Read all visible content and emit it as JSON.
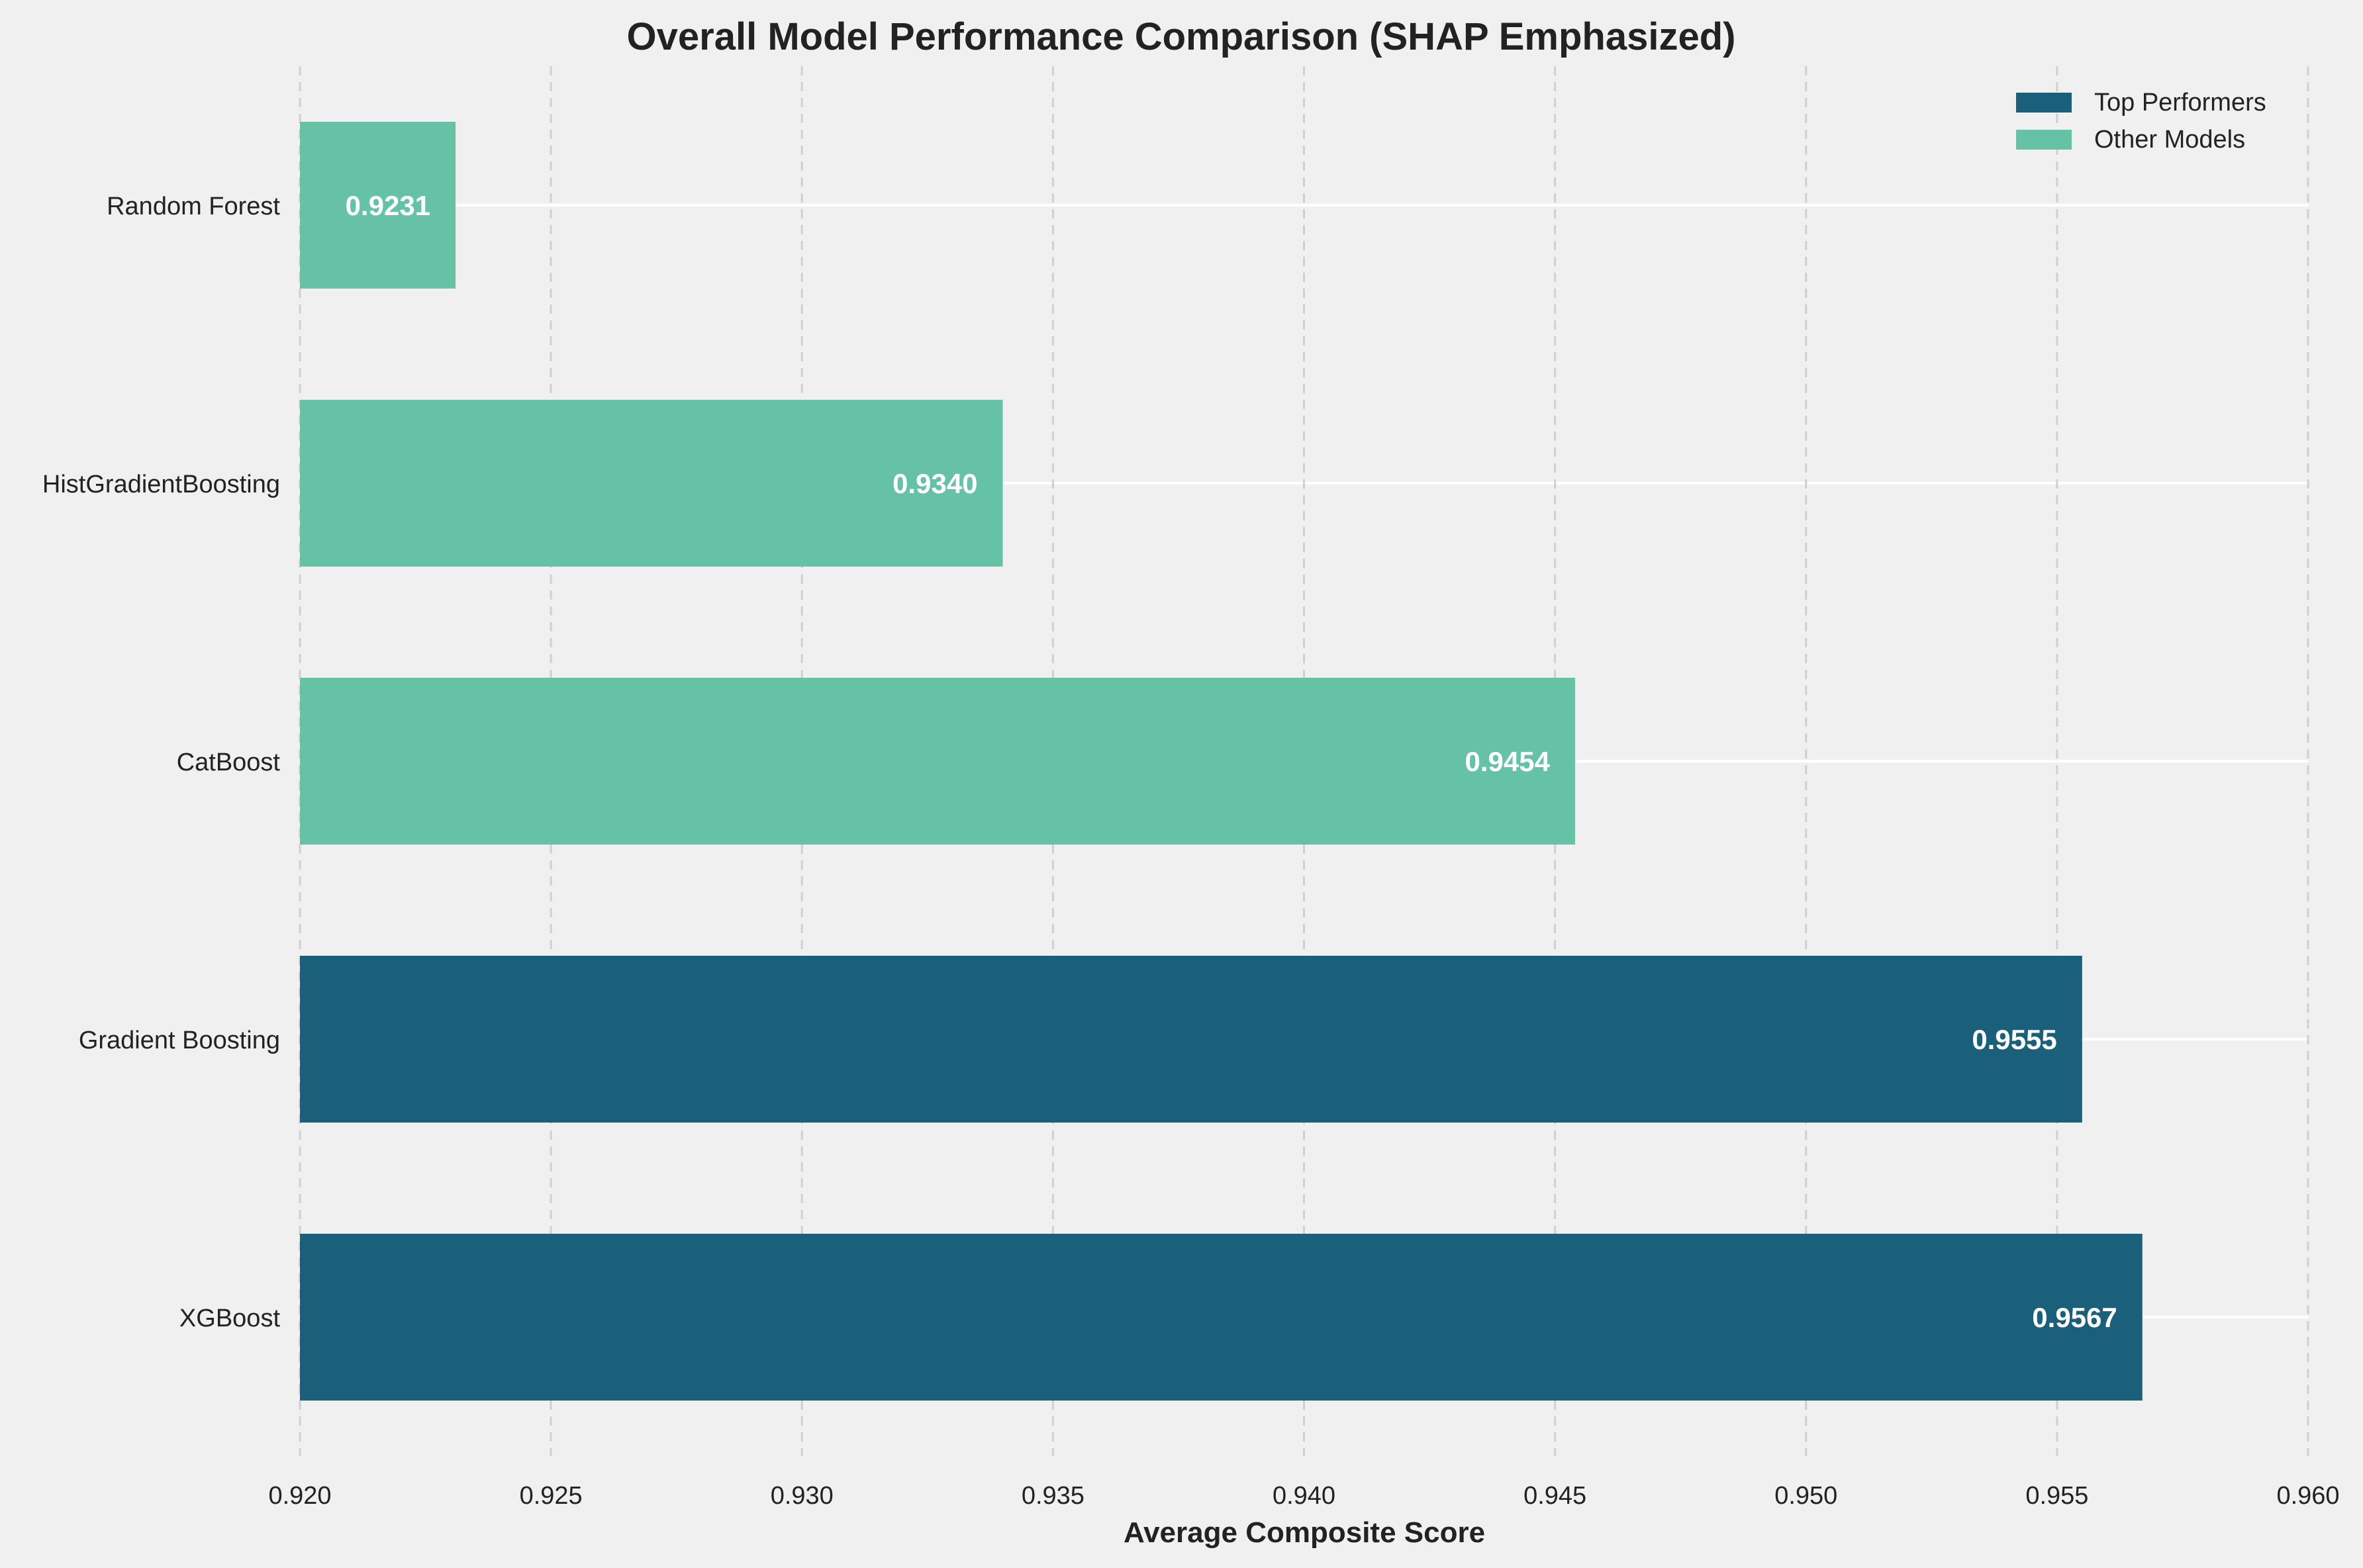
{
  "chart_data": {
    "type": "bar",
    "orientation": "horizontal",
    "title": "Overall Model Performance Comparison (SHAP Emphasized)",
    "xlabel": "Average Composite Score",
    "ylabel": "",
    "xlim": [
      0.92,
      0.96
    ],
    "x_ticks": [
      "0.920",
      "0.925",
      "0.930",
      "0.935",
      "0.940",
      "0.945",
      "0.950",
      "0.955",
      "0.960"
    ],
    "categories": [
      "XGBoost",
      "Gradient Boosting",
      "CatBoost",
      "HistGradientBoosting",
      "Random Forest"
    ],
    "values": [
      0.9567,
      0.9555,
      0.9454,
      0.934,
      0.9231
    ],
    "value_labels": [
      "0.9567",
      "0.9555",
      "0.9454",
      "0.9340",
      "0.9231"
    ],
    "groups": [
      "top",
      "top",
      "other",
      "other",
      "other"
    ],
    "legend": {
      "placement": "top-right",
      "entries": [
        {
          "key": "top",
          "label": "Top Performers",
          "color": "#1b607a"
        },
        {
          "key": "other",
          "label": "Other Models",
          "color": "#66c2a5"
        }
      ]
    },
    "grid": {
      "x": true,
      "y": true
    }
  }
}
